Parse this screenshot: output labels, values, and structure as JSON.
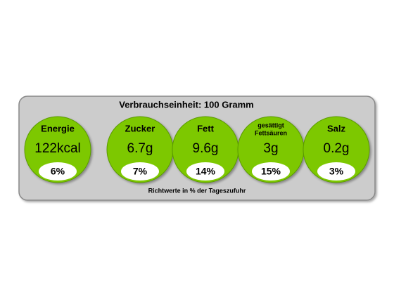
{
  "header": {
    "title": "Verbrauchseinheit: 100 Gramm"
  },
  "items": [
    {
      "name": [
        "Energie"
      ],
      "amount": "122kcal",
      "percent": "6%"
    },
    {
      "name": [
        "Zucker"
      ],
      "amount": "6.7g",
      "percent": "7%"
    },
    {
      "name": [
        "Fett"
      ],
      "amount": "9.6g",
      "percent": "14%"
    },
    {
      "name": [
        "gesättigt",
        "Fettsäuren"
      ],
      "amount": "3g",
      "percent": "15%"
    },
    {
      "name": [
        "Salz"
      ],
      "amount": "0.2g",
      "percent": "3%"
    }
  ],
  "footer": {
    "note": "Richtwerte in % der Tageszufuhr"
  }
}
